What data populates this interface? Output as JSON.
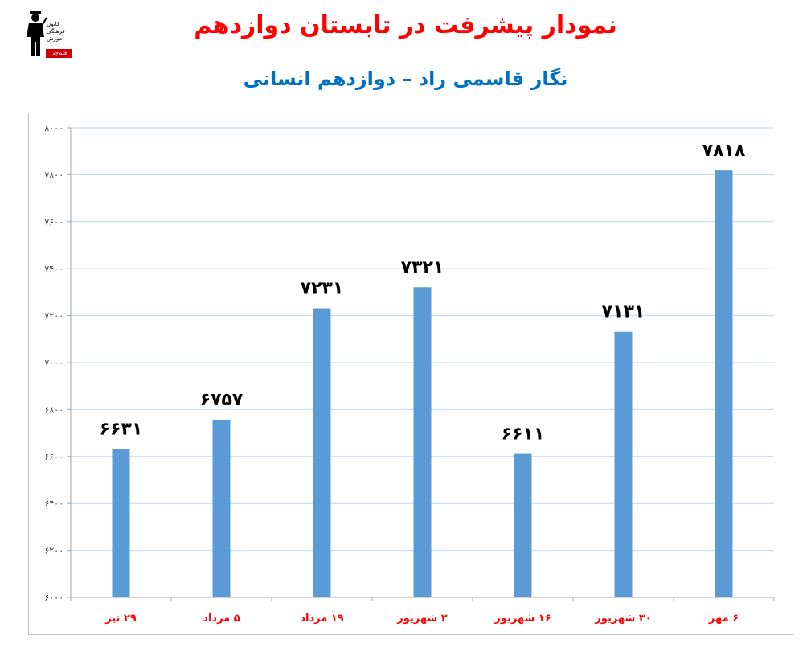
{
  "header": {
    "title": "نمودار پیشرفت در تابستان دوازدهم",
    "subtitle": "نگار قاسمی راد – دوازدهم انسانی"
  },
  "logo": {
    "org_lines": [
      "کانون",
      "فرهنگی",
      "آموزش"
    ],
    "brand": "قلم‌چی"
  },
  "chart_data": {
    "type": "bar",
    "title": "",
    "xlabel": "",
    "ylabel": "",
    "categories": [
      "۲۹ تیر",
      "۵ مرداد",
      "۱۹ مرداد",
      "۲ شهریور",
      "۱۶ شهریور",
      "۳۰ شهریور",
      "۶ مهر"
    ],
    "values": [
      6631,
      6757,
      7231,
      7321,
      6611,
      7131,
      7818
    ],
    "value_labels": [
      "۶۶۳۱",
      "۶۷۵۷",
      "۷۲۳۱",
      "۷۳۲۱",
      "۶۶۱۱",
      "۷۱۳۱",
      "۷۸۱۸"
    ],
    "ylim": [
      6000,
      8000
    ],
    "yticks": [
      6000,
      6200,
      6400,
      6600,
      6800,
      7000,
      7200,
      7400,
      7600,
      7800,
      8000
    ],
    "ytick_labels": [
      "۶۰۰۰",
      "۶۲۰۰",
      "۶۴۰۰",
      "۶۶۰۰",
      "۶۸۰۰",
      "۷۰۰۰",
      "۷۲۰۰",
      "۷۴۰۰",
      "۷۶۰۰",
      "۷۸۰۰",
      "۸۰۰۰"
    ],
    "grid": true,
    "legend": "none",
    "bar_color": "#5b9bd5",
    "grid_color": "#bdd7ee",
    "category_label_color": "#ff0000",
    "value_label_color": "#000000"
  }
}
